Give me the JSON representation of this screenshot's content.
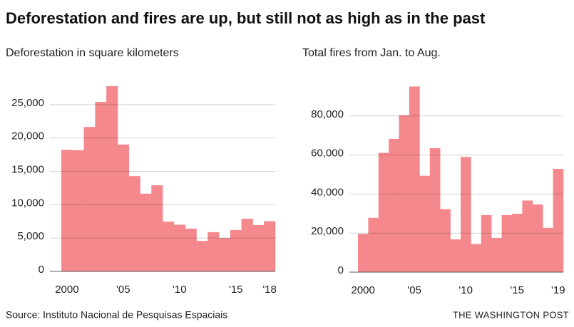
{
  "title": "Deforestation and fires are up, but still not as high as in the past",
  "source": "Source: Instituto Nacional de Pesquisas Espaciais",
  "credit": "THE WASHINGTON POST",
  "chart_data": [
    {
      "type": "bar",
      "title": "Deforestation in square kilometers",
      "color": "#f4888c",
      "grid": true,
      "categories": [
        "2000",
        null,
        null,
        null,
        null,
        "'05",
        null,
        null,
        null,
        null,
        "'10",
        null,
        null,
        null,
        null,
        "'15",
        null,
        null,
        "'18"
      ],
      "values": [
        18226,
        18165,
        21651,
        25396,
        27772,
        19014,
        14286,
        11651,
        12911,
        7464,
        7000,
        6418,
        4571,
        5891,
        5012,
        6207,
        7893,
        6947,
        7536
      ],
      "ylim": [
        0,
        30000
      ],
      "yticks": [
        0,
        {
          "value": 5000,
          "label": "5,000"
        },
        {
          "value": 10000,
          "label": "10,000"
        },
        {
          "value": 15000,
          "label": "15,000"
        },
        {
          "value": 20000,
          "label": "20,000"
        },
        {
          "value": 25000,
          "label": "25,000"
        }
      ]
    },
    {
      "type": "bar",
      "title": "Total fires from Jan. to Aug.",
      "color": "#f4888c",
      "grid": true,
      "categories": [
        "2000",
        null,
        null,
        null,
        null,
        "'05",
        null,
        null,
        null,
        null,
        "'10",
        null,
        null,
        null,
        null,
        "'15",
        null,
        null,
        null,
        "'19"
      ],
      "values": [
        19600,
        27800,
        61100,
        68300,
        80400,
        95100,
        49400,
        63500,
        32300,
        16800,
        59000,
        14400,
        29200,
        17500,
        29200,
        29900,
        36700,
        34700,
        22700,
        52900
      ],
      "ylim": [
        0,
        100000
      ],
      "yticks": [
        0,
        {
          "value": 20000,
          "label": "20,000"
        },
        {
          "value": 40000,
          "label": "40,000"
        },
        {
          "value": 60000,
          "label": "60,000"
        },
        {
          "value": 80000,
          "label": "80,000"
        }
      ]
    }
  ]
}
